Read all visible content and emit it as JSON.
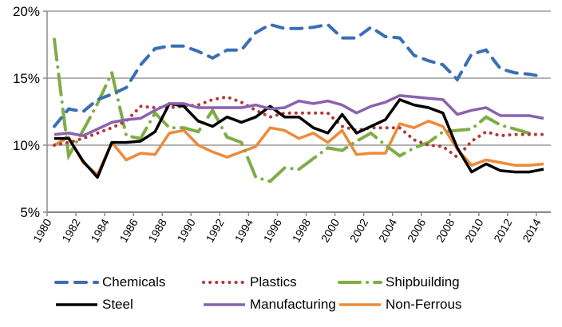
{
  "chart_data": {
    "type": "line",
    "title": "",
    "xlabel": "",
    "ylabel": "",
    "ylim": [
      5,
      20
    ],
    "yticks": [
      "5%",
      "10%",
      "15%",
      "20%"
    ],
    "ytick_values": [
      5,
      10,
      15,
      20
    ],
    "grid": "horizontal",
    "legend_position": "bottom",
    "x": [
      1980,
      1981,
      1982,
      1983,
      1984,
      1985,
      1986,
      1987,
      1988,
      1989,
      1990,
      1991,
      1992,
      1993,
      1994,
      1995,
      1996,
      1997,
      1998,
      1999,
      2000,
      2001,
      2002,
      2003,
      2004,
      2005,
      2006,
      2007,
      2008,
      2009,
      2010,
      2011,
      2012,
      2013,
      2014
    ],
    "xtick_labels": [
      "1980",
      "1982",
      "1984",
      "1986",
      "1988",
      "1990",
      "1992",
      "1994",
      "1996",
      "1998",
      "2000",
      "2002",
      "2004",
      "2006",
      "2008",
      "2010",
      "2012",
      "2014"
    ],
    "series": [
      {
        "name": "Chemicals",
        "color": "#3a6eb5",
        "style": "dash",
        "values": [
          11.4,
          12.7,
          12.5,
          13.4,
          13.8,
          14.3,
          16.0,
          17.2,
          17.4,
          17.4,
          17.0,
          16.5,
          17.1,
          17.1,
          18.4,
          19.0,
          18.7,
          18.7,
          18.8,
          19.0,
          18.0,
          18.0,
          18.8,
          18.1,
          18.0,
          16.7,
          16.3,
          16.0,
          14.9,
          16.8,
          17.1,
          15.7,
          15.4,
          15.3,
          15.1
        ]
      },
      {
        "name": "Plastics",
        "color": "#b03a3a",
        "style": "dot",
        "values": [
          10.0,
          10.2,
          10.5,
          10.9,
          11.3,
          11.8,
          12.9,
          12.8,
          12.8,
          12.9,
          13.0,
          13.4,
          13.6,
          13.2,
          12.6,
          12.1,
          12.4,
          12.4,
          12.4,
          12.4,
          11.4,
          11.1,
          11.3,
          11.3,
          11.3,
          10.4,
          10.0,
          9.9,
          9.1,
          10.3,
          11.0,
          10.7,
          10.8,
          10.8,
          10.8
        ]
      },
      {
        "name": "Shipbuilding",
        "color": "#7fac45",
        "style": "dashdot",
        "values": [
          17.9,
          9.2,
          11.1,
          13.1,
          15.4,
          10.7,
          10.5,
          12.4,
          11.3,
          11.3,
          11.0,
          12.6,
          10.6,
          10.2,
          7.6,
          7.3,
          8.3,
          8.2,
          9.0,
          9.8,
          9.6,
          10.3,
          10.9,
          10.0,
          9.2,
          9.8,
          10.2,
          11.0,
          11.1,
          11.2,
          12.1,
          11.5,
          11.2,
          10.9,
          null
        ]
      },
      {
        "name": "Steel",
        "color": "#000000",
        "style": "solid",
        "values": [
          10.5,
          10.5,
          8.8,
          7.6,
          10.2,
          10.2,
          10.3,
          11.0,
          13.1,
          12.9,
          11.8,
          11.4,
          12.1,
          11.7,
          12.1,
          12.9,
          12.1,
          12.1,
          11.3,
          10.9,
          12.3,
          10.9,
          11.4,
          11.9,
          13.4,
          13.0,
          12.8,
          12.4,
          9.8,
          8.0,
          8.6,
          8.1,
          8.0,
          8.0,
          8.2
        ]
      },
      {
        "name": "Manufacturing",
        "color": "#8a62ad",
        "style": "solid",
        "values": [
          10.8,
          10.9,
          10.7,
          11.2,
          11.7,
          11.9,
          12.0,
          12.6,
          13.1,
          13.1,
          12.8,
          12.8,
          12.8,
          12.8,
          13.0,
          12.7,
          12.8,
          13.3,
          13.1,
          13.3,
          13.0,
          12.4,
          12.9,
          13.2,
          13.7,
          13.6,
          13.5,
          13.4,
          12.3,
          12.6,
          12.8,
          12.2,
          12.2,
          12.2,
          12.0
        ]
      },
      {
        "name": "Non-Ferrous",
        "color": "#ed8a3a",
        "style": "solid",
        "values": [
          10.0,
          10.6,
          8.7,
          7.8,
          10.2,
          8.9,
          9.4,
          9.3,
          10.9,
          11.1,
          10.0,
          9.5,
          9.1,
          9.5,
          9.9,
          11.3,
          11.1,
          10.5,
          10.9,
          10.2,
          11.1,
          9.3,
          9.4,
          9.4,
          11.6,
          11.3,
          11.8,
          11.4,
          9.7,
          8.5,
          8.9,
          8.7,
          8.5,
          8.5,
          8.6
        ]
      }
    ]
  }
}
